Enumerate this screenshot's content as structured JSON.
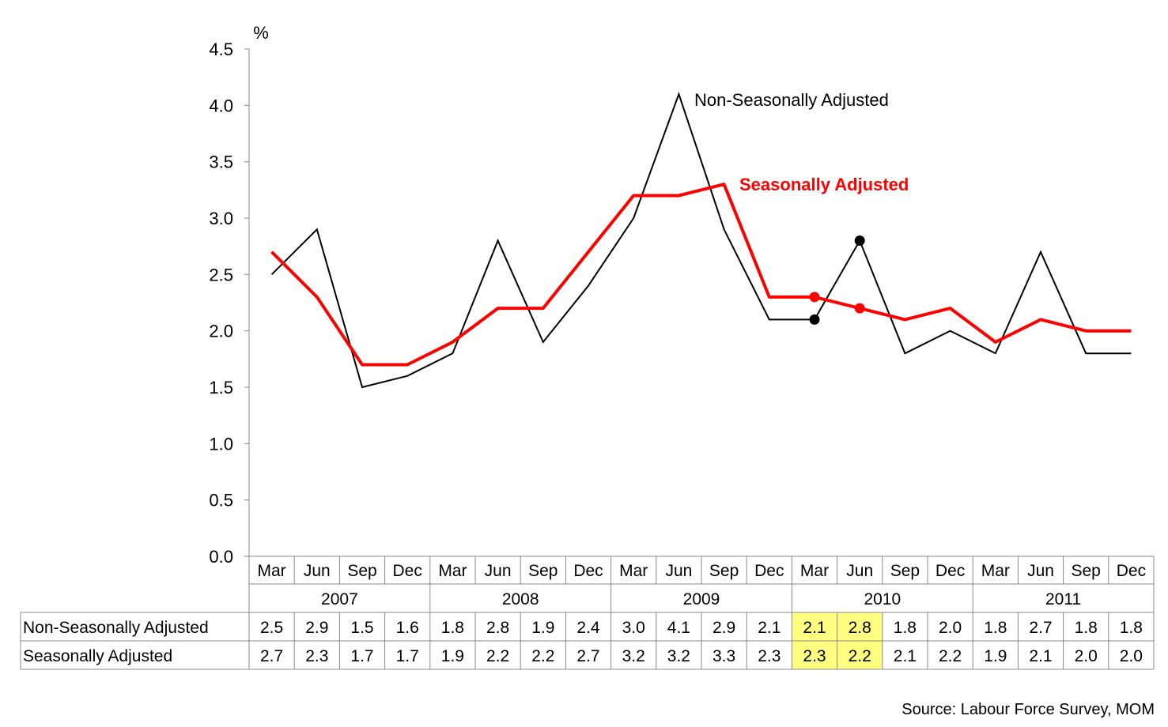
{
  "chart_data": {
    "type": "line",
    "y_unit": "%",
    "ylim": [
      0,
      4.5
    ],
    "yticks": [
      "0.0",
      "0.5",
      "1.0",
      "1.5",
      "2.0",
      "2.5",
      "3.0",
      "3.5",
      "4.0",
      "4.5"
    ],
    "quarters": [
      "Mar",
      "Jun",
      "Sep",
      "Dec",
      "Mar",
      "Jun",
      "Sep",
      "Dec",
      "Mar",
      "Jun",
      "Sep",
      "Dec",
      "Mar",
      "Jun",
      "Sep",
      "Dec",
      "Mar",
      "Jun",
      "Sep",
      "Dec"
    ],
    "years": [
      "2007",
      "2008",
      "2009",
      "2010",
      "2011"
    ],
    "series": [
      {
        "name": "Non-Seasonally Adjusted",
        "color": "#000000",
        "values": [
          2.5,
          2.9,
          1.5,
          1.6,
          1.8,
          2.8,
          1.9,
          2.4,
          3.0,
          4.1,
          2.9,
          2.1,
          2.1,
          2.8,
          1.8,
          2.0,
          1.8,
          2.7,
          1.8,
          1.8
        ],
        "labels": [
          "2.5",
          "2.9",
          "1.5",
          "1.6",
          "1.8",
          "2.8",
          "1.9",
          "2.4",
          "3.0",
          "4.1",
          "2.9",
          "2.1",
          "2.1",
          "2.8",
          "1.8",
          "2.0",
          "1.8",
          "2.7",
          "1.8",
          "1.8"
        ]
      },
      {
        "name": "Seasonally Adjusted",
        "color": "#ff0000",
        "values": [
          2.7,
          2.3,
          1.7,
          1.7,
          1.9,
          2.2,
          2.2,
          2.7,
          3.2,
          3.2,
          3.3,
          2.3,
          2.3,
          2.2,
          2.1,
          2.2,
          1.9,
          2.1,
          2.0,
          2.0
        ],
        "labels": [
          "2.7",
          "2.3",
          "1.7",
          "1.7",
          "1.9",
          "2.2",
          "2.2",
          "2.7",
          "3.2",
          "3.2",
          "3.3",
          "2.3",
          "2.3",
          "2.2",
          "2.1",
          "2.2",
          "1.9",
          "2.1",
          "2.0",
          "2.0"
        ]
      }
    ],
    "highlight_indices": [
      12,
      13
    ],
    "highlight_color": "#ffff80",
    "marker_indices": [
      12,
      13
    ],
    "grid": false,
    "annotations": [
      "Non-Seasonally Adjusted",
      "Seasonally Adjusted"
    ],
    "source": "Source: Labour Force Survey, MOM"
  }
}
